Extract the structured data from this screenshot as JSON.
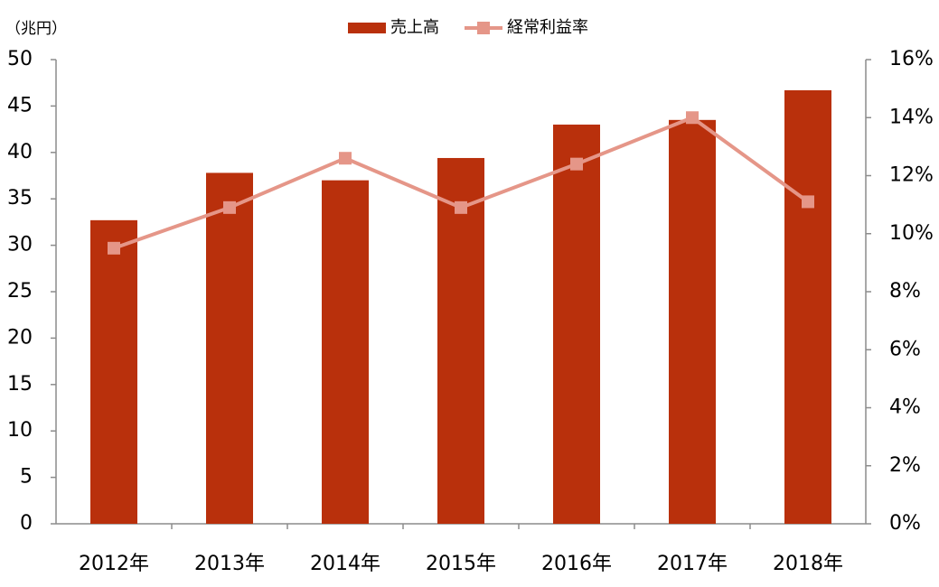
{
  "chart_data": {
    "type": "bar",
    "categories": [
      "2012年",
      "2013年",
      "2014年",
      "2015年",
      "2016年",
      "2017年",
      "2018年"
    ],
    "series": [
      {
        "name": "売上高",
        "type": "bar",
        "axis": "left",
        "color": "#B9300C",
        "values": [
          32.7,
          37.8,
          37.0,
          39.4,
          43.0,
          43.5,
          46.7
        ]
      },
      {
        "name": "経常利益率",
        "type": "line",
        "axis": "right",
        "color": "#E59688",
        "marker": "square",
        "values": [
          0.095,
          0.109,
          0.126,
          0.109,
          0.124,
          0.14,
          0.111
        ]
      }
    ],
    "left_axis": {
      "unit_label": "（兆円）",
      "ylim": [
        0,
        50
      ],
      "ticks": [
        "0",
        "5",
        "10",
        "15",
        "20",
        "25",
        "30",
        "35",
        "40",
        "45",
        "50"
      ]
    },
    "right_axis": {
      "ylim": [
        0,
        0.16
      ],
      "ticks": [
        "0%",
        "2%",
        "4%",
        "6%",
        "8%",
        "10%",
        "12%",
        "14%",
        "16%"
      ]
    },
    "legend": {
      "position": "top-center",
      "items": [
        "売上高",
        "経常利益率"
      ]
    },
    "grid": false
  }
}
